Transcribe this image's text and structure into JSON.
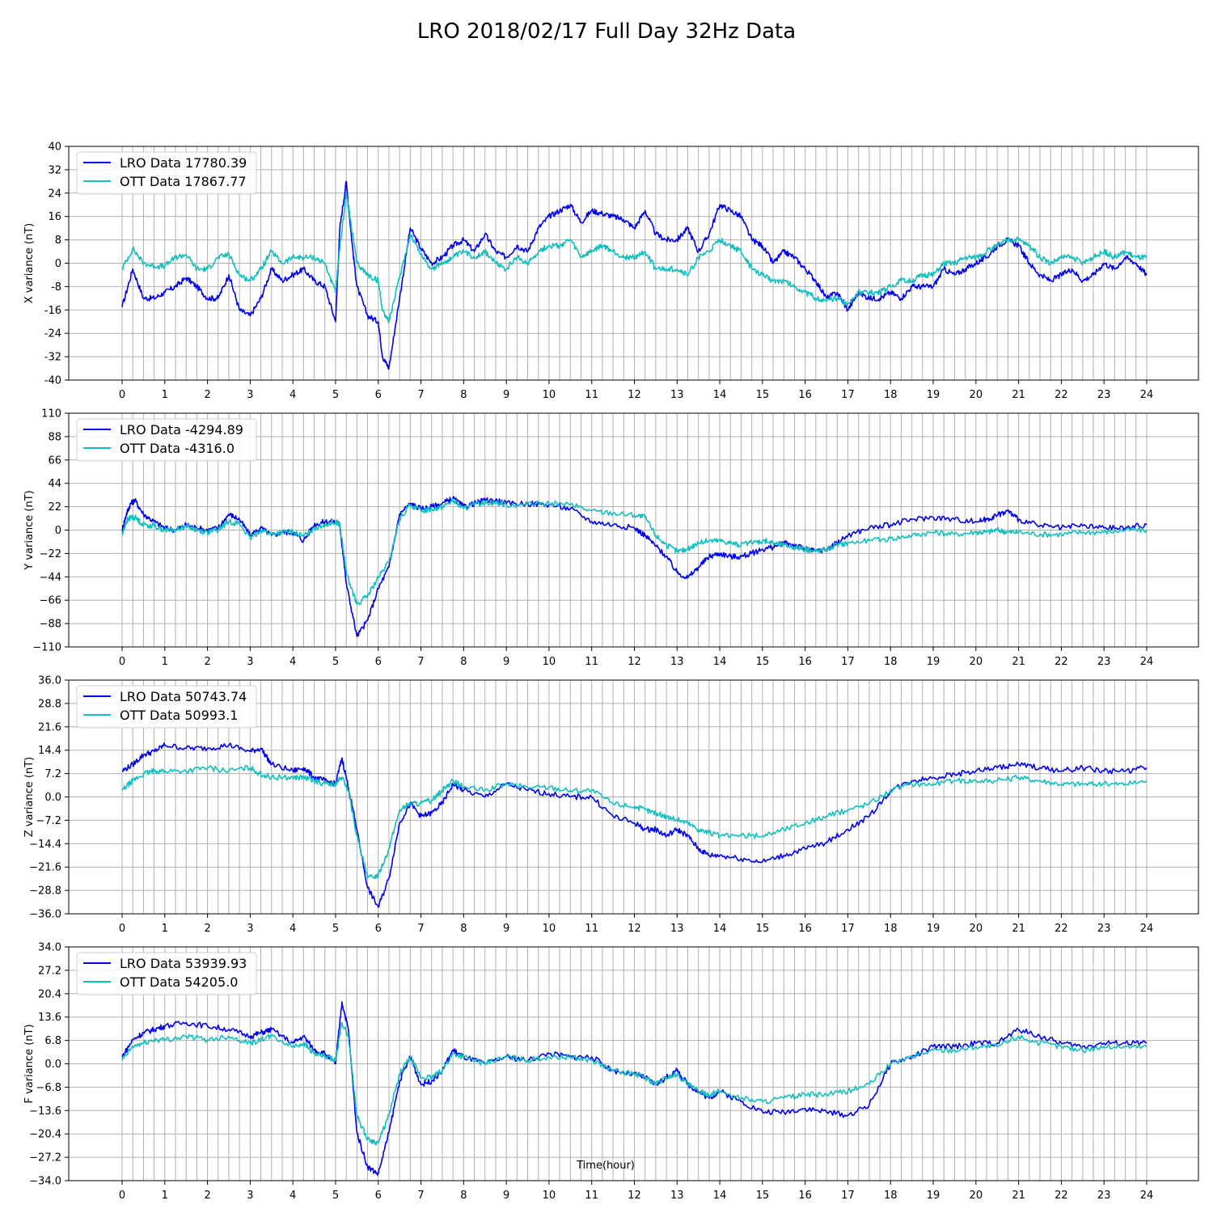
{
  "figure": {
    "title": "LRO 2018/02/17 Full Day 32Hz Data",
    "xlabel": "Time(hour)"
  },
  "colors": {
    "lro": "#0000ee",
    "ott": "#11bfbf",
    "grid": "#b0b0b0",
    "axis": "#000000"
  },
  "chart_data": [
    {
      "type": "line",
      "ylabel": "X variance (nT)",
      "ylim": [
        -40,
        40
      ],
      "yticks": [
        "40",
        "32",
        "24",
        "16",
        "8",
        "0",
        "-8",
        "-16",
        "-24",
        "-32",
        "-40"
      ],
      "xlim": [
        0,
        24
      ],
      "xticks": [
        "0",
        "1",
        "2",
        "3",
        "4",
        "5",
        "6",
        "7",
        "8",
        "9",
        "10",
        "11",
        "12",
        "13",
        "14",
        "15",
        "16",
        "17",
        "18",
        "19",
        "20",
        "21",
        "22",
        "23",
        "24"
      ],
      "grid": true,
      "legend": "top-left",
      "x": [
        0,
        0.25,
        0.5,
        0.75,
        1,
        1.25,
        1.5,
        1.75,
        2,
        2.25,
        2.5,
        2.75,
        3,
        3.25,
        3.5,
        3.75,
        4,
        4.25,
        4.5,
        4.75,
        5,
        5.1,
        5.25,
        5.4,
        5.5,
        5.75,
        6,
        6.1,
        6.25,
        6.5,
        6.75,
        7,
        7.25,
        7.5,
        7.75,
        8,
        8.25,
        8.5,
        8.75,
        9,
        9.25,
        9.5,
        9.75,
        10,
        10.25,
        10.5,
        10.75,
        11,
        11.25,
        11.5,
        11.75,
        12,
        12.25,
        12.5,
        12.75,
        13,
        13.25,
        13.5,
        13.75,
        14,
        14.25,
        14.5,
        14.75,
        15,
        15.25,
        15.5,
        15.75,
        16,
        16.25,
        16.5,
        16.75,
        17,
        17.25,
        17.5,
        17.75,
        18,
        18.25,
        18.5,
        18.75,
        19,
        19.25,
        19.5,
        19.75,
        20,
        20.25,
        20.5,
        20.75,
        21,
        21.25,
        21.5,
        21.75,
        22,
        22.25,
        22.5,
        22.75,
        23,
        23.25,
        23.5,
        23.75,
        24
      ],
      "series": [
        {
          "name": "LRO Data 17780.39",
          "key": "lro",
          "values": [
            -15,
            -2,
            -12,
            -12,
            -10,
            -8,
            -5,
            -8,
            -12,
            -12,
            -4,
            -16,
            -18,
            -12,
            -2,
            -6,
            -4,
            -2,
            -6,
            -8,
            -20,
            12,
            28,
            5,
            -8,
            -18,
            -20,
            -32,
            -36,
            -12,
            12,
            5,
            0,
            2,
            6,
            8,
            4,
            10,
            4,
            2,
            6,
            4,
            12,
            16,
            18,
            20,
            14,
            18,
            17,
            16,
            15,
            12,
            18,
            10,
            8,
            8,
            12,
            4,
            10,
            20,
            18,
            16,
            8,
            6,
            0,
            4,
            2,
            -2,
            -6,
            -12,
            -10,
            -16,
            -10,
            -12,
            -12,
            -10,
            -12,
            -8,
            -8,
            -8,
            -2,
            -4,
            -2,
            0,
            2,
            6,
            8,
            6,
            0,
            -4,
            -6,
            -4,
            -2,
            -6,
            -4,
            0,
            -2,
            2,
            0,
            -4
          ]
        },
        {
          "name": "OTT Data 17867.77",
          "key": "ott",
          "values": [
            -2,
            5,
            0,
            -1,
            -1,
            2,
            3,
            -2,
            -2,
            2,
            3,
            -4,
            -6,
            -2,
            4,
            0,
            2,
            2,
            2,
            0,
            -10,
            5,
            24,
            10,
            0,
            -4,
            -6,
            -16,
            -20,
            -5,
            10,
            3,
            -2,
            0,
            2,
            4,
            2,
            4,
            0,
            -2,
            2,
            0,
            4,
            6,
            6,
            8,
            2,
            4,
            6,
            4,
            2,
            2,
            4,
            -2,
            -2,
            -2,
            -4,
            2,
            4,
            8,
            6,
            4,
            -2,
            -4,
            -6,
            -6,
            -8,
            -10,
            -12,
            -13,
            -12,
            -14,
            -10,
            -10,
            -10,
            -8,
            -6,
            -6,
            -4,
            -4,
            0,
            0,
            2,
            2,
            4,
            6,
            8,
            8,
            6,
            2,
            0,
            2,
            2,
            0,
            2,
            4,
            2,
            4,
            2,
            2
          ]
        }
      ]
    },
    {
      "type": "line",
      "ylabel": "Y variance (nT)",
      "ylim": [
        -110,
        110
      ],
      "yticks": [
        "110",
        "88",
        "66",
        "44",
        "22",
        "0",
        "−22",
        "−44",
        "−66",
        "−88",
        "−110"
      ],
      "xlim": [
        0,
        24
      ],
      "xticks": [
        "0",
        "1",
        "2",
        "3",
        "4",
        "5",
        "6",
        "7",
        "8",
        "9",
        "10",
        "11",
        "12",
        "13",
        "14",
        "15",
        "16",
        "17",
        "18",
        "19",
        "20",
        "21",
        "22",
        "23",
        "24"
      ],
      "grid": true,
      "legend": "top-left",
      "x": [
        0,
        0.1,
        0.2,
        0.3,
        0.5,
        0.75,
        1,
        1.25,
        1.5,
        1.75,
        2,
        2.25,
        2.5,
        2.75,
        3,
        3.25,
        3.5,
        3.75,
        4,
        4.25,
        4.5,
        4.75,
        5,
        5.1,
        5.25,
        5.5,
        5.75,
        6,
        6.25,
        6.5,
        6.75,
        7,
        7.25,
        7.5,
        7.75,
        8,
        8.25,
        8.5,
        8.75,
        9,
        9.5,
        10,
        10.5,
        11,
        11.5,
        12,
        12.25,
        12.5,
        12.75,
        13,
        13.25,
        13.5,
        13.75,
        14,
        14.25,
        14.5,
        14.75,
        15,
        15.25,
        15.5,
        15.75,
        16,
        16.25,
        16.5,
        16.75,
        17,
        17.5,
        18,
        18.5,
        19,
        19.5,
        20,
        20.25,
        20.5,
        20.75,
        21,
        21.5,
        22,
        22.5,
        23,
        23.5,
        24
      ],
      "series": [
        {
          "name": "LRO Data -4294.89",
          "key": "lro",
          "values": [
            0,
            15,
            25,
            28,
            15,
            8,
            2,
            0,
            5,
            2,
            0,
            2,
            15,
            10,
            -5,
            2,
            -5,
            -2,
            -2,
            -10,
            5,
            8,
            8,
            5,
            -50,
            -100,
            -85,
            -55,
            -35,
            15,
            25,
            20,
            22,
            25,
            30,
            22,
            25,
            28,
            28,
            25,
            25,
            24,
            20,
            8,
            5,
            2,
            -5,
            -15,
            -25,
            -40,
            -45,
            -35,
            -25,
            -22,
            -25,
            -25,
            -22,
            -18,
            -16,
            -12,
            -14,
            -18,
            -20,
            -18,
            -12,
            -5,
            2,
            5,
            10,
            12,
            10,
            8,
            10,
            14,
            18,
            10,
            4,
            2,
            4,
            2,
            2,
            5
          ]
        },
        {
          "name": "OTT Data -4316.0",
          "key": "ott",
          "values": [
            -5,
            8,
            12,
            12,
            5,
            4,
            0,
            0,
            4,
            0,
            -2,
            0,
            8,
            6,
            -8,
            0,
            -4,
            -2,
            -2,
            -6,
            2,
            5,
            8,
            5,
            -40,
            -70,
            -62,
            -45,
            -30,
            10,
            24,
            18,
            20,
            22,
            28,
            20,
            24,
            26,
            26,
            24,
            24,
            25,
            24,
            18,
            16,
            14,
            12,
            -5,
            -14,
            -20,
            -18,
            -12,
            -10,
            -10,
            -12,
            -14,
            -12,
            -10,
            -12,
            -14,
            -16,
            -18,
            -20,
            -18,
            -14,
            -12,
            -10,
            -8,
            -5,
            -2,
            -4,
            -2,
            -2,
            0,
            -2,
            -2,
            -4,
            -4,
            -2,
            -2,
            0,
            0
          ]
        }
      ]
    },
    {
      "type": "line",
      "ylabel": "Z variance (nT)",
      "ylim": [
        -36,
        36
      ],
      "yticks": [
        "36.0",
        "28.8",
        "21.6",
        "14.4",
        "7.2",
        "0.0",
        "−7.2",
        "−14.4",
        "−21.6",
        "−28.8",
        "−36.0"
      ],
      "xlim": [
        0,
        24
      ],
      "xticks": [
        "0",
        "1",
        "2",
        "3",
        "4",
        "5",
        "6",
        "7",
        "8",
        "9",
        "10",
        "11",
        "12",
        "13",
        "14",
        "15",
        "16",
        "17",
        "18",
        "19",
        "20",
        "21",
        "22",
        "23",
        "24"
      ],
      "grid": true,
      "legend": "top-left",
      "x": [
        0,
        0.25,
        0.5,
        0.75,
        1,
        1.5,
        2,
        2.5,
        3,
        3.25,
        3.5,
        4,
        4.25,
        4.5,
        4.75,
        5,
        5.15,
        5.3,
        5.5,
        5.75,
        6,
        6.25,
        6.5,
        6.75,
        7,
        7.25,
        7.5,
        7.75,
        8,
        8.5,
        9,
        9.5,
        10,
        10.5,
        11,
        11.5,
        12,
        12.25,
        12.5,
        12.75,
        13,
        13.25,
        13.5,
        13.75,
        14,
        14.5,
        15,
        15.5,
        16,
        16.5,
        17,
        17.5,
        18,
        18.5,
        19,
        19.5,
        20,
        20.5,
        21,
        21.5,
        22,
        22.5,
        23,
        23.5,
        24
      ],
      "series": [
        {
          "name": "LRO Data 50743.74",
          "key": "lro",
          "values": [
            8,
            10,
            13,
            14,
            16,
            15,
            15,
            16,
            14,
            15,
            10,
            8,
            9,
            6,
            5,
            4,
            12,
            3,
            -10,
            -28,
            -34,
            -25,
            -8,
            -2,
            -6,
            -5,
            -2,
            4,
            2,
            0,
            4,
            2,
            1,
            0,
            0,
            -6,
            -8,
            -10,
            -10,
            -12,
            -10,
            -12,
            -16,
            -18,
            -18,
            -19,
            -20,
            -18,
            -16,
            -14,
            -10,
            -6,
            2,
            5,
            6,
            7,
            8,
            9,
            10,
            9,
            8,
            9,
            8,
            8,
            9
          ]
        },
        {
          "name": "OTT Data 50993.1",
          "key": "ott",
          "values": [
            2,
            5,
            7,
            8,
            8,
            8,
            9,
            8,
            9,
            7,
            6,
            6,
            6,
            5,
            4,
            4,
            6,
            2,
            -12,
            -25,
            -24,
            -16,
            -4,
            -2,
            -2,
            -1,
            2,
            5,
            3,
            2,
            4,
            3,
            3,
            2,
            2,
            -2,
            -3,
            -4,
            -5,
            -6,
            -7,
            -8,
            -10,
            -11,
            -12,
            -12,
            -12,
            -10,
            -8,
            -6,
            -4,
            -2,
            2,
            4,
            4,
            5,
            5,
            5,
            6,
            5,
            4,
            4,
            4,
            4,
            5
          ]
        }
      ]
    },
    {
      "type": "line",
      "ylabel": "F variance (nT)",
      "ylim": [
        -34,
        34
      ],
      "yticks": [
        "34.0",
        "27.2",
        "20.4",
        "13.6",
        "6.8",
        "0.0",
        "−6.8",
        "−13.6",
        "−20.4",
        "−27.2",
        "−34.0"
      ],
      "xlim": [
        0,
        24
      ],
      "xticks": [
        "0",
        "1",
        "2",
        "3",
        "4",
        "5",
        "6",
        "7",
        "8",
        "9",
        "10",
        "11",
        "12",
        "13",
        "14",
        "15",
        "16",
        "17",
        "18",
        "19",
        "20",
        "21",
        "22",
        "23",
        "24"
      ],
      "grid": true,
      "legend": "top-left",
      "x": [
        0,
        0.25,
        0.5,
        0.75,
        1,
        1.5,
        2,
        2.5,
        3,
        3.25,
        3.5,
        4,
        4.25,
        4.5,
        4.75,
        5,
        5.15,
        5.3,
        5.5,
        5.75,
        6,
        6.25,
        6.5,
        6.75,
        7,
        7.25,
        7.5,
        7.75,
        8,
        8.5,
        9,
        9.5,
        10,
        10.5,
        11,
        11.5,
        12,
        12.25,
        12.5,
        12.75,
        13,
        13.25,
        13.5,
        13.75,
        14,
        14.5,
        15,
        15.5,
        16,
        16.5,
        17,
        17.5,
        18,
        18.5,
        19,
        19.5,
        20,
        20.5,
        21,
        21.5,
        22,
        22.5,
        23,
        23.5,
        24
      ],
      "series": [
        {
          "name": "LRO Data 53939.93",
          "key": "lro",
          "values": [
            2,
            7,
            9,
            10,
            11,
            12,
            11,
            10,
            8,
            9,
            10,
            6,
            8,
            4,
            3,
            0,
            18,
            10,
            -20,
            -30,
            -32,
            -20,
            -5,
            2,
            -6,
            -5,
            -2,
            4,
            2,
            0,
            2,
            1,
            3,
            2,
            2,
            -2,
            -3,
            -4,
            -6,
            -4,
            -2,
            -6,
            -8,
            -10,
            -8,
            -11,
            -14,
            -14,
            -13,
            -14,
            -15,
            -12,
            0,
            2,
            5,
            5,
            6,
            6,
            10,
            8,
            6,
            5,
            6,
            6,
            6
          ]
        },
        {
          "name": "OTT Data 54205.0",
          "key": "ott",
          "values": [
            1,
            5,
            6,
            7,
            7,
            8,
            7,
            8,
            6,
            7,
            8,
            5,
            6,
            3,
            2,
            1,
            12,
            8,
            -15,
            -22,
            -23,
            -15,
            -3,
            2,
            -4,
            -4,
            -2,
            3,
            2,
            0,
            2,
            1,
            2,
            2,
            1,
            -2,
            -3,
            -4,
            -6,
            -4,
            -3,
            -6,
            -8,
            -9,
            -8,
            -10,
            -11,
            -10,
            -9,
            -9,
            -8,
            -6,
            0,
            2,
            4,
            4,
            5,
            5,
            8,
            6,
            5,
            4,
            5,
            5,
            5
          ]
        }
      ]
    }
  ]
}
